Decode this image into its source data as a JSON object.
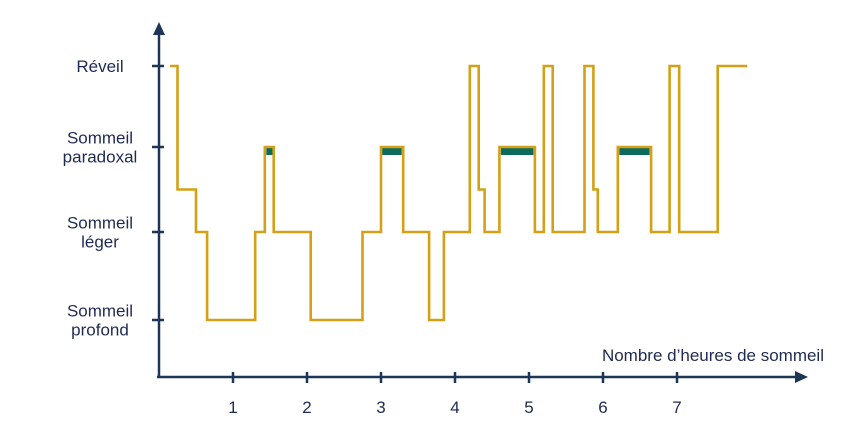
{
  "chart_data": {
    "type": "line",
    "title": "",
    "xlabel": "Nombre d’heures de sommeil",
    "ylabel": "",
    "x_ticks": [
      "1",
      "2",
      "3",
      "4",
      "5",
      "6",
      "7"
    ],
    "y_levels": [
      {
        "value": 4,
        "lines": [
          "Réveil"
        ]
      },
      {
        "value": 3,
        "lines": [
          "Sommeil",
          "paradoxal"
        ]
      },
      {
        "value": 2,
        "lines": [
          "Sommeil",
          "léger"
        ]
      },
      {
        "value": 1,
        "lines": [
          "Sommeil",
          "profond"
        ]
      }
    ],
    "xlim": [
      -0.05,
      8.6
    ],
    "ylim": [
      0.3,
      4.6
    ],
    "colors": {
      "line": "#d4a017",
      "rem_highlight": "#0b6b5f",
      "axis": "#1d3557"
    },
    "hypnogram": [
      [
        0.15,
        4
      ],
      [
        0.25,
        4
      ],
      [
        0.25,
        2.5
      ],
      [
        0.5,
        2.5
      ],
      [
        0.5,
        2
      ],
      [
        0.65,
        2
      ],
      [
        0.65,
        1
      ],
      [
        1.3,
        1
      ],
      [
        1.3,
        2
      ],
      [
        1.43,
        2
      ],
      [
        1.43,
        3
      ],
      [
        1.55,
        3
      ],
      [
        1.55,
        2
      ],
      [
        2.05,
        2
      ],
      [
        2.05,
        1
      ],
      [
        2.75,
        1
      ],
      [
        2.75,
        2
      ],
      [
        3.0,
        2
      ],
      [
        3.0,
        3
      ],
      [
        3.3,
        3
      ],
      [
        3.3,
        2
      ],
      [
        3.65,
        2
      ],
      [
        3.65,
        1
      ],
      [
        3.85,
        1
      ],
      [
        3.85,
        2
      ],
      [
        4.2,
        2
      ],
      [
        4.2,
        4
      ],
      [
        4.32,
        4
      ],
      [
        4.32,
        2.5
      ],
      [
        4.4,
        2.5
      ],
      [
        4.4,
        2
      ],
      [
        4.6,
        2
      ],
      [
        4.6,
        3
      ],
      [
        5.08,
        3
      ],
      [
        5.08,
        2
      ],
      [
        5.2,
        2
      ],
      [
        5.2,
        4
      ],
      [
        5.32,
        4
      ],
      [
        5.32,
        2
      ],
      [
        5.75,
        2
      ],
      [
        5.75,
        4
      ],
      [
        5.87,
        4
      ],
      [
        5.87,
        2.5
      ],
      [
        5.93,
        2.5
      ],
      [
        5.93,
        2
      ],
      [
        6.2,
        2
      ],
      [
        6.2,
        3
      ],
      [
        6.65,
        3
      ],
      [
        6.65,
        2
      ],
      [
        6.9,
        2
      ],
      [
        6.9,
        4
      ],
      [
        7.03,
        4
      ],
      [
        7.03,
        2
      ],
      [
        7.55,
        2
      ],
      [
        7.55,
        4
      ],
      [
        7.95,
        4
      ]
    ],
    "rem_highlights": [
      {
        "start": 1.45,
        "end": 1.55
      },
      {
        "start": 3.0,
        "end": 3.28
      },
      {
        "start": 4.62,
        "end": 5.06
      },
      {
        "start": 6.22,
        "end": 6.63
      }
    ]
  }
}
